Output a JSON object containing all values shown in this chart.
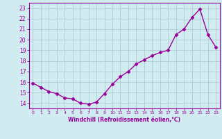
{
  "x": [
    0,
    1,
    2,
    3,
    4,
    5,
    6,
    7,
    8,
    9,
    10,
    11,
    12,
    13,
    14,
    15,
    16,
    17,
    18,
    19,
    20,
    21,
    22,
    23
  ],
  "y": [
    15.9,
    15.5,
    15.1,
    14.9,
    14.5,
    14.4,
    14.0,
    13.9,
    14.1,
    14.9,
    15.8,
    16.5,
    17.0,
    17.7,
    18.1,
    18.5,
    18.8,
    19.0,
    20.5,
    21.0,
    22.1,
    22.9,
    20.5,
    19.3
  ],
  "line_color": "#990099",
  "marker": "D",
  "marker_size": 2.5,
  "linewidth": 1.0,
  "bg_color": "#d0ecf0",
  "grid_color": "#b0ccd4",
  "xlabel": "Windchill (Refroidissement éolien,°C)",
  "xlabel_color": "#990099",
  "tick_color": "#990099",
  "ylim": [
    13.5,
    23.5
  ],
  "xlim": [
    -0.5,
    23.5
  ],
  "yticks": [
    14,
    15,
    16,
    17,
    18,
    19,
    20,
    21,
    22,
    23
  ],
  "xticks": [
    0,
    1,
    2,
    3,
    4,
    5,
    6,
    7,
    8,
    9,
    10,
    11,
    12,
    13,
    14,
    15,
    16,
    17,
    18,
    19,
    20,
    21,
    22,
    23
  ]
}
